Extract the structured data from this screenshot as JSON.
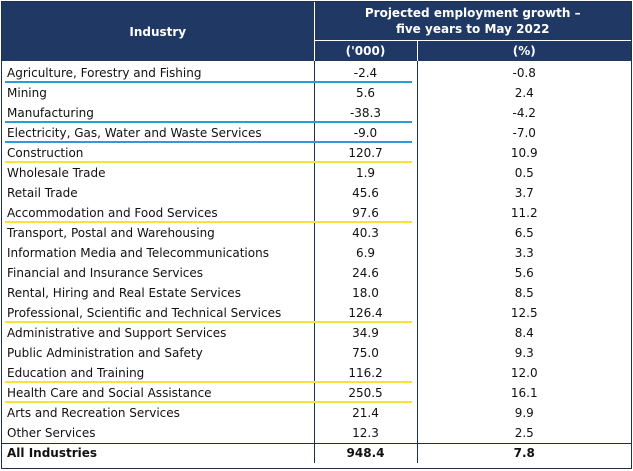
{
  "table": {
    "header": {
      "industry": "Industry",
      "group": "Projected employment growth – five years to May 2022",
      "col_thousands": "('000)",
      "col_percent": "(%)"
    },
    "rows": [
      {
        "industry": "Agriculture, Forestry and Fishing",
        "thousands": "-2.4",
        "percent": "-0.8",
        "highlight": "blue"
      },
      {
        "industry": "Mining",
        "thousands": "5.6",
        "percent": "2.4"
      },
      {
        "industry": "Manufacturing",
        "thousands": "-38.3",
        "percent": "-4.2",
        "highlight": "blue"
      },
      {
        "industry": "Electricity, Gas, Water and Waste Services",
        "thousands": "-9.0",
        "percent": "-7.0",
        "highlight": "blue"
      },
      {
        "industry": "Construction",
        "thousands": "120.7",
        "percent": "10.9",
        "highlight": "yellow"
      },
      {
        "industry": "Wholesale Trade",
        "thousands": "1.9",
        "percent": "0.5"
      },
      {
        "industry": "Retail Trade",
        "thousands": "45.6",
        "percent": "3.7"
      },
      {
        "industry": "Accommodation and Food Services",
        "thousands": "97.6",
        "percent": "11.2",
        "highlight": "yellow"
      },
      {
        "industry": "Transport, Postal and Warehousing",
        "thousands": "40.3",
        "percent": "6.5"
      },
      {
        "industry": "Information Media and Telecommunications",
        "thousands": "6.9",
        "percent": "3.3"
      },
      {
        "industry": "Financial and Insurance Services",
        "thousands": "24.6",
        "percent": "5.6"
      },
      {
        "industry": "Rental, Hiring and Real Estate Services",
        "thousands": "18.0",
        "percent": "8.5"
      },
      {
        "industry": "Professional, Scientific and Technical Services",
        "thousands": "126.4",
        "percent": "12.5",
        "highlight": "yellow"
      },
      {
        "industry": "Administrative and Support Services",
        "thousands": "34.9",
        "percent": "8.4"
      },
      {
        "industry": "Public Administration and Safety",
        "thousands": "75.0",
        "percent": "9.3"
      },
      {
        "industry": "Education and Training",
        "thousands": "116.2",
        "percent": "12.0",
        "highlight": "yellow"
      },
      {
        "industry": "Health Care and Social Assistance",
        "thousands": "250.5",
        "percent": "16.1",
        "highlight": "yellow"
      },
      {
        "industry": "Arts and Recreation Services",
        "thousands": "21.4",
        "percent": "9.9"
      },
      {
        "industry": "Other Services",
        "thousands": "12.3",
        "percent": "2.5"
      }
    ],
    "total": {
      "industry": "All Industries",
      "thousands": "948.4",
      "percent": "7.8"
    }
  },
  "colors": {
    "header_bg": "#1f3864",
    "blue_underline": "#2e9bd6",
    "yellow_underline": "#f5e33a"
  }
}
